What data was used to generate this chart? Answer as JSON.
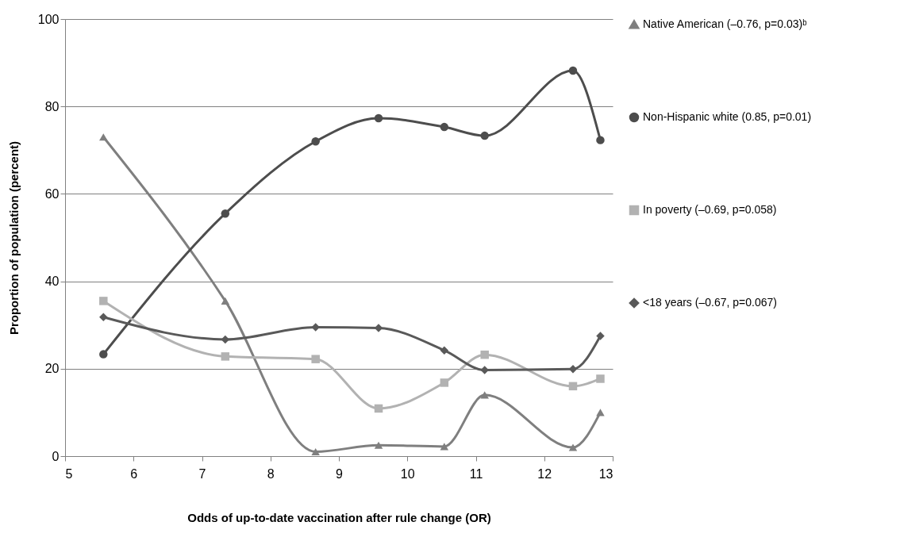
{
  "chart_data": {
    "type": "line",
    "xlabel": "Odds of up-to-date vaccination after rule change (OR)",
    "ylabel": "Proportion of population (percent)",
    "x": [
      5.56,
      7.34,
      8.66,
      9.58,
      10.54,
      11.13,
      12.42,
      12.82
    ],
    "series": [
      {
        "name": "Native American (–0.76, p=0.03)ᵇ",
        "color": "#7f7f7f",
        "marker": "triangle",
        "values": [
          73,
          35.5,
          1,
          2.5,
          2.2,
          14,
          2,
          10
        ]
      },
      {
        "name": "Non-Hispanic white (0.85, p=0.01)",
        "color": "#4d4d4d",
        "marker": "circle",
        "values": [
          23.3,
          55.5,
          72,
          77.3,
          75.3,
          73.3,
          88.2,
          72.3
        ]
      },
      {
        "name": "In poverty (–0.69, p=0.058)",
        "color": "#b2b2b2",
        "marker": "square",
        "values": [
          35.5,
          22.8,
          22.2,
          10.9,
          16.8,
          23.2,
          16,
          17.7
        ]
      },
      {
        "name": "<18 years (–0.67, p=0.067)",
        "color": "#595959",
        "marker": "diamond",
        "values": [
          31.8,
          26.7,
          29.5,
          29.3,
          24.2,
          19.7,
          19.9,
          27.5
        ]
      }
    ],
    "xlim": [
      5,
      13
    ],
    "xticks": [
      5,
      6,
      7,
      8,
      9,
      10,
      11,
      12,
      13
    ],
    "ylim": [
      0,
      100
    ],
    "yticks": [
      0,
      20,
      40,
      60,
      80,
      100
    ],
    "grid": "y",
    "legend": "right",
    "line_style": "solid"
  }
}
